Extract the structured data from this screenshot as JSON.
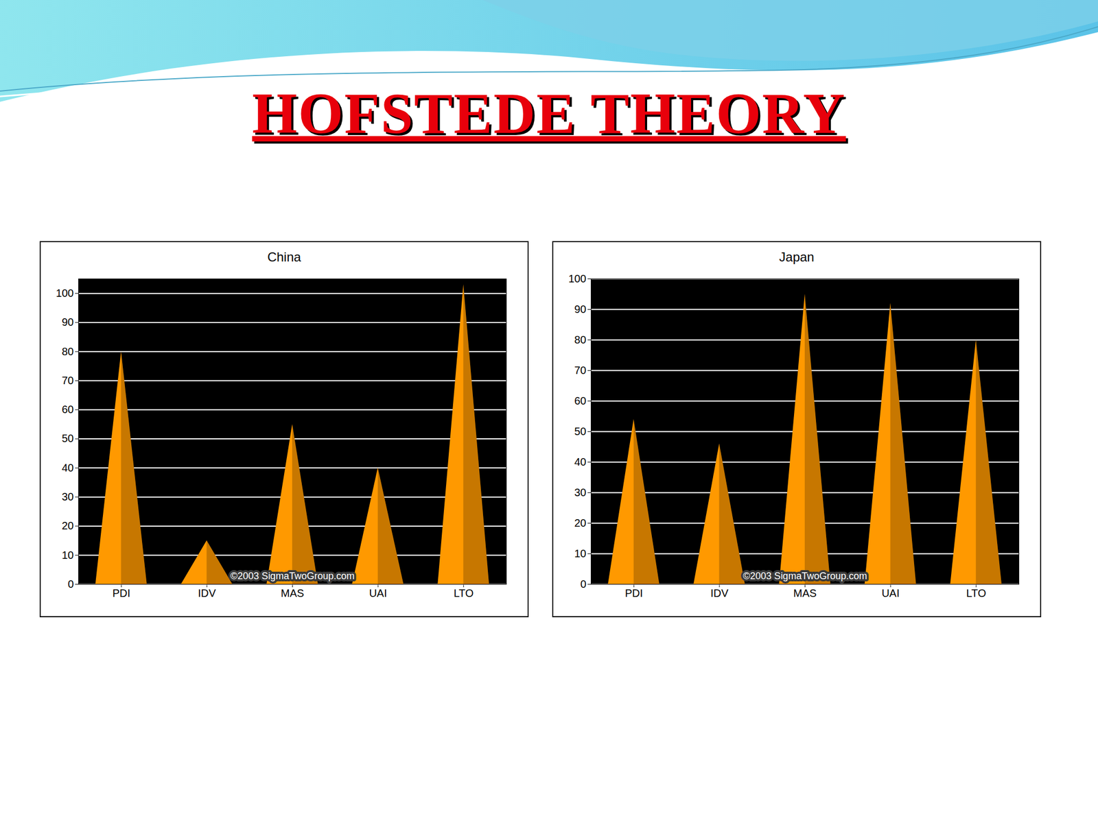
{
  "title": "HOFSTEDE THEORY",
  "chart_data": [
    {
      "type": "bar",
      "title": "China",
      "categories": [
        "PDI",
        "IDV",
        "MAS",
        "UAI",
        "LTO"
      ],
      "values": [
        80,
        15,
        55,
        40,
        103
      ],
      "color": "#ff9900",
      "ylim": [
        0,
        105
      ],
      "yticks": [
        0,
        10,
        20,
        30,
        40,
        50,
        60,
        70,
        80,
        90,
        100
      ],
      "grid": true,
      "annotation": "©2003 SigmaTwoGroup.com"
    },
    {
      "type": "bar",
      "title": "Japan",
      "categories": [
        "PDI",
        "IDV",
        "MAS",
        "UAI",
        "LTO"
      ],
      "values": [
        54,
        46,
        95,
        92,
        80
      ],
      "color": "#ff9900",
      "ylim": [
        0,
        100
      ],
      "yticks": [
        0,
        10,
        20,
        30,
        40,
        50,
        60,
        70,
        80,
        90,
        100
      ],
      "grid": true,
      "annotation": "©2003 SigmaTwoGroup.com"
    }
  ]
}
